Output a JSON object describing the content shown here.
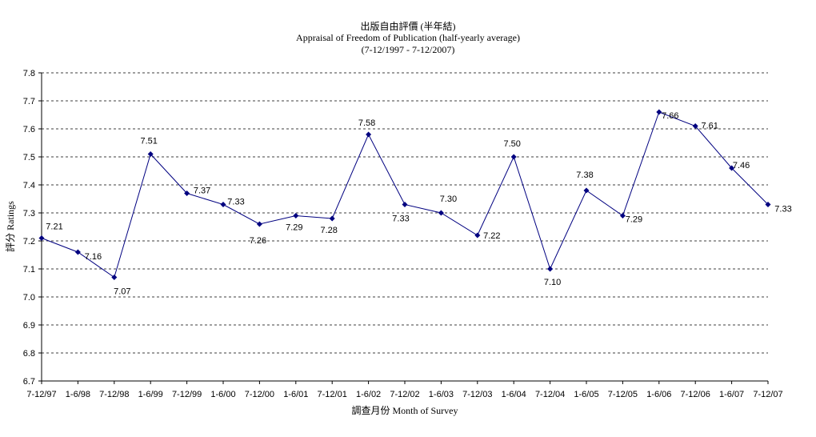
{
  "chart_data": {
    "type": "line",
    "title": "出版自由評價 (半年結)",
    "subtitle": "Appraisal of Freedom of Publication (half-yearly average)",
    "period": "(7-12/1997 - 7-12/2007)",
    "xlabel": "調查月份 Month of Survey",
    "ylabel": "評分 Ratings",
    "ylim": [
      6.7,
      7.8
    ],
    "ytick_step": 0.1,
    "grid": true,
    "line_color": "#000080",
    "categories": [
      "7-12/97",
      "1-6/98",
      "7-12/98",
      "1-6/99",
      "7-12/99",
      "1-6/00",
      "7-12/00",
      "1-6/01",
      "7-12/01",
      "1-6/02",
      "7-12/02",
      "1-6/03",
      "7-12/03",
      "1-6/04",
      "7-12/04",
      "1-6/05",
      "7-12/05",
      "1-6/06",
      "7-12/06",
      "1-6/07",
      "7-12/07"
    ],
    "values": [
      7.21,
      7.16,
      7.07,
      7.51,
      7.37,
      7.33,
      7.26,
      7.29,
      7.28,
      7.58,
      7.33,
      7.3,
      7.22,
      7.5,
      7.1,
      7.38,
      7.29,
      7.66,
      7.61,
      7.46,
      7.33
    ],
    "labels": [
      "7.21",
      "7.16",
      "7.07",
      "7.51",
      "7.37",
      "7.33",
      "7.26",
      "7.29",
      "7.28",
      "7.58",
      "7.33",
      "7.30",
      "7.22",
      "7.50",
      "7.10",
      "7.38",
      "7.29",
      "7.66",
      "7.61",
      "7.46",
      "7.33"
    ]
  }
}
